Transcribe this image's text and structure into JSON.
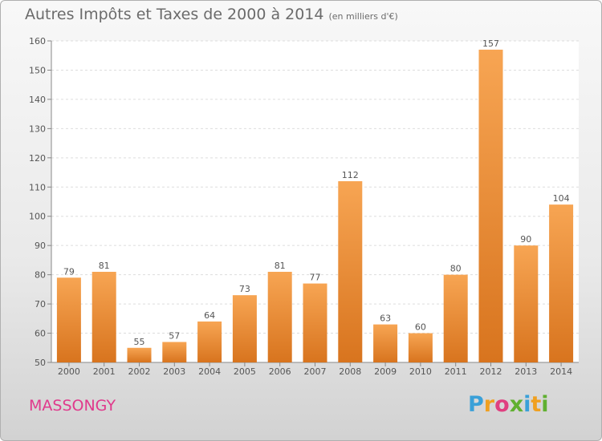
{
  "title": {
    "main": "Autres Impôts et Taxes de 2000 à 2014",
    "sub": "(en milliers d'€)"
  },
  "location": "MASSONGY",
  "logo": {
    "letters": [
      "P",
      "r",
      "o",
      "x",
      "i",
      "t",
      "i"
    ],
    "colors": [
      "#3aa0d8",
      "#f0a020",
      "#e04080",
      "#60b030",
      "#3aa0d8",
      "#f0a020",
      "#60b030"
    ]
  },
  "colors": {
    "bar_top": "#f7a553",
    "bar_bottom": "#d8741e",
    "label": "#555555",
    "grid": "#dddddd"
  },
  "chart_data": {
    "type": "bar",
    "categories": [
      "2000",
      "2001",
      "2002",
      "2003",
      "2004",
      "2005",
      "2006",
      "2007",
      "2008",
      "2009",
      "2010",
      "2011",
      "2012",
      "2013",
      "2014"
    ],
    "values": [
      79,
      81,
      55,
      57,
      64,
      73,
      81,
      77,
      112,
      63,
      60,
      80,
      157,
      90,
      104
    ],
    "title": "Autres Impôts et Taxes de 2000 à 2014",
    "ylim": [
      50,
      160
    ],
    "yticks": [
      50,
      60,
      70,
      80,
      90,
      100,
      110,
      120,
      130,
      140,
      150,
      160
    ],
    "grid": "horizontal dashed",
    "data_labels": true
  }
}
